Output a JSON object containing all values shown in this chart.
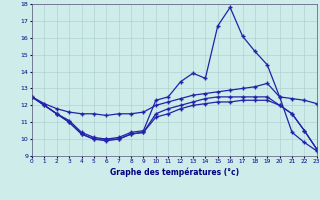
{
  "title": "Graphe des températures (°c)",
  "background_color": "#ceecea",
  "line_color": "#2222aa",
  "x_hours": [
    0,
    1,
    2,
    3,
    4,
    5,
    6,
    7,
    8,
    9,
    10,
    11,
    12,
    13,
    14,
    15,
    16,
    17,
    18,
    19,
    20,
    21,
    22,
    23
  ],
  "xlim": [
    0,
    23
  ],
  "ylim": [
    9,
    18
  ],
  "yticks": [
    9,
    10,
    11,
    12,
    13,
    14,
    15,
    16,
    17,
    18
  ],
  "line1_peak": {
    "x": [
      0,
      1,
      2,
      3,
      4,
      5,
      6,
      7,
      8,
      9,
      10,
      11,
      12,
      13,
      14,
      15,
      16,
      17,
      18,
      19,
      20,
      21,
      22,
      23
    ],
    "y": [
      12.5,
      12.0,
      11.5,
      11.1,
      10.4,
      10.1,
      10.0,
      10.1,
      10.4,
      10.5,
      12.3,
      12.5,
      13.4,
      13.9,
      13.6,
      16.7,
      17.8,
      16.1,
      15.2,
      14.4,
      12.5,
      10.4,
      9.8,
      9.3
    ]
  },
  "line2_upper": {
    "x": [
      0,
      1,
      2,
      3,
      4,
      5,
      6,
      7,
      8,
      9,
      10,
      11,
      12,
      13,
      14,
      15,
      16,
      17,
      18,
      19,
      20,
      21,
      22,
      23
    ],
    "y": [
      12.5,
      12.1,
      11.8,
      11.6,
      11.5,
      11.5,
      11.4,
      11.5,
      11.5,
      11.6,
      12.0,
      12.2,
      12.4,
      12.6,
      12.7,
      12.8,
      12.9,
      13.0,
      13.1,
      13.3,
      12.5,
      12.4,
      12.3,
      12.1
    ]
  },
  "line3_mid": {
    "x": [
      0,
      1,
      2,
      3,
      4,
      5,
      6,
      7,
      8,
      9,
      10,
      11,
      12,
      13,
      14,
      15,
      16,
      17,
      18,
      19,
      20,
      21,
      22,
      23
    ],
    "y": [
      12.5,
      12.0,
      11.5,
      11.0,
      10.3,
      10.0,
      10.0,
      10.0,
      10.3,
      10.4,
      11.5,
      11.8,
      12.0,
      12.2,
      12.4,
      12.5,
      12.5,
      12.5,
      12.5,
      12.5,
      12.0,
      11.5,
      10.5,
      9.4
    ]
  },
  "line4_low": {
    "x": [
      0,
      2,
      3,
      4,
      5,
      6,
      7,
      8,
      9,
      10,
      11,
      12,
      13,
      14,
      15,
      16,
      17,
      18,
      19,
      20,
      21,
      22,
      23
    ],
    "y": [
      12.5,
      11.5,
      11.0,
      10.3,
      10.0,
      9.9,
      10.0,
      10.3,
      10.4,
      11.3,
      11.5,
      11.8,
      12.0,
      12.1,
      12.2,
      12.2,
      12.3,
      12.3,
      12.3,
      12.0,
      11.5,
      10.5,
      9.4
    ]
  }
}
